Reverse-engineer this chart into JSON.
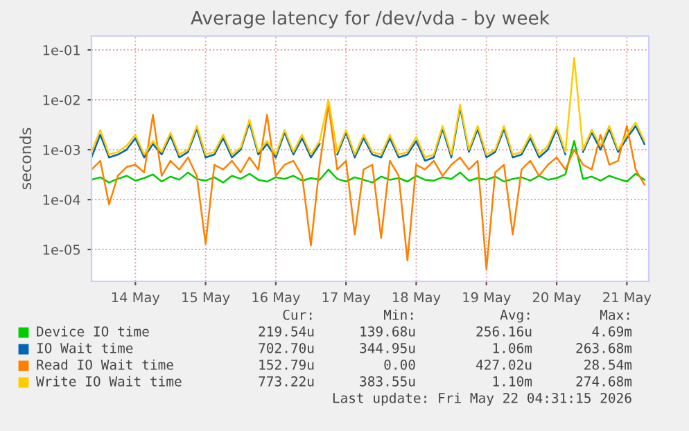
{
  "chart_data": {
    "type": "line",
    "title": "Average latency for /dev/vda - by week",
    "ylabel": "seconds",
    "x": [
      "2026-05-13T21:00",
      "2026-05-14T00:00",
      "2026-05-14T03:00",
      "2026-05-14T06:00",
      "2026-05-14T09:00",
      "2026-05-14T12:00",
      "2026-05-14T15:00",
      "2026-05-14T18:00",
      "2026-05-14T21:00",
      "2026-05-15T00:00",
      "2026-05-15T03:00",
      "2026-05-15T06:00",
      "2026-05-15T09:00",
      "2026-05-15T12:00",
      "2026-05-15T15:00",
      "2026-05-15T18:00",
      "2026-05-15T21:00",
      "2026-05-16T00:00",
      "2026-05-16T03:00",
      "2026-05-16T06:00",
      "2026-05-16T09:00",
      "2026-05-16T12:00",
      "2026-05-16T15:00",
      "2026-05-16T18:00",
      "2026-05-16T21:00",
      "2026-05-17T00:00",
      "2026-05-17T03:00",
      "2026-05-17T06:00",
      "2026-05-17T09:00",
      "2026-05-17T12:00",
      "2026-05-17T15:00",
      "2026-05-17T18:00",
      "2026-05-17T21:00",
      "2026-05-18T00:00",
      "2026-05-18T03:00",
      "2026-05-18T06:00",
      "2026-05-18T09:00",
      "2026-05-18T12:00",
      "2026-05-18T15:00",
      "2026-05-18T18:00",
      "2026-05-18T21:00",
      "2026-05-19T00:00",
      "2026-05-19T03:00",
      "2026-05-19T06:00",
      "2026-05-19T09:00",
      "2026-05-19T12:00",
      "2026-05-19T15:00",
      "2026-05-19T18:00",
      "2026-05-19T21:00",
      "2026-05-20T00:00",
      "2026-05-20T03:00",
      "2026-05-20T06:00",
      "2026-05-20T09:00",
      "2026-05-20T12:00",
      "2026-05-20T15:00",
      "2026-05-20T18:00",
      "2026-05-20T21:00",
      "2026-05-21T00:00",
      "2026-05-21T03:00",
      "2026-05-21T06:00",
      "2026-05-21T09:00",
      "2026-05-21T12:00",
      "2026-05-21T15:00",
      "2026-05-21T18:00"
    ],
    "series": [
      {
        "name": "Device IO time",
        "color": "#00cc00",
        "values": [
          0.00025,
          0.00028,
          0.00022,
          0.00026,
          0.0003,
          0.00024,
          0.00027,
          0.00032,
          0.00023,
          0.00029,
          0.00025,
          0.00035,
          0.00026,
          0.00024,
          0.00028,
          0.00022,
          0.0003,
          0.00026,
          0.00033,
          0.00025,
          0.00023,
          0.00028,
          0.00026,
          0.0003,
          0.00024,
          0.00027,
          0.00025,
          0.0004,
          0.00026,
          0.00023,
          0.00028,
          0.00025,
          0.00022,
          0.00029,
          0.00025,
          0.00027,
          0.00023,
          0.0003,
          0.00025,
          0.00024,
          0.00028,
          0.00026,
          0.00035,
          0.00024,
          0.00027,
          0.00025,
          0.00029,
          0.00023,
          0.00026,
          0.00028,
          0.00024,
          0.0003,
          0.00025,
          0.00027,
          0.00032,
          0.0015,
          0.00026,
          0.00029,
          0.00024,
          0.0003,
          0.00026,
          0.00023,
          0.00033,
          0.00025
        ]
      },
      {
        "name": "IO Wait time",
        "color": "#0066b3",
        "values": [
          0.0007,
          0.002,
          0.0007,
          0.0008,
          0.001,
          0.0017,
          0.0007,
          0.0013,
          0.0008,
          0.0019,
          0.0007,
          0.0009,
          0.0026,
          0.0007,
          0.0008,
          0.0017,
          0.0007,
          0.001,
          0.0035,
          0.0008,
          0.0013,
          0.0007,
          0.0022,
          0.0008,
          0.0017,
          0.0007,
          0.0013,
          null,
          0.0008,
          0.0022,
          0.0007,
          0.0017,
          0.0008,
          0.0007,
          0.0017,
          0.0007,
          0.0008,
          0.0015,
          0.0006,
          0.0007,
          0.0026,
          0.0007,
          0.007,
          0.0009,
          0.0026,
          0.0007,
          0.0009,
          0.0026,
          0.0007,
          0.0008,
          0.0017,
          0.0007,
          0.001,
          0.0026,
          0.0008,
          null,
          0.0009,
          0.0022,
          0.001,
          0.0026,
          0.0009,
          0.0017,
          0.003,
          0.0013
        ]
      },
      {
        "name": "Read IO Wait time",
        "color": "#ff8000",
        "values": [
          0.0004,
          0.0006,
          8e-05,
          0.0003,
          0.00045,
          0.0005,
          0.00035,
          0.005,
          0.0003,
          0.0006,
          0.0004,
          0.0007,
          0.0003,
          1.3e-05,
          0.0005,
          0.0004,
          0.0006,
          0.00035,
          0.0007,
          0.0004,
          0.005,
          0.0003,
          0.0005,
          0.0006,
          0.0003,
          1.2e-05,
          0.0005,
          0.008,
          0.0004,
          0.0006,
          2e-05,
          0.0004,
          0.0005,
          1.7e-05,
          0.0006,
          0.0003,
          6e-06,
          0.0005,
          0.0004,
          0.0006,
          0.0003,
          0.0005,
          0.0007,
          0.0004,
          0.0006,
          4e-06,
          0.00035,
          0.0005,
          2e-05,
          0.0004,
          0.0006,
          0.0003,
          0.0005,
          0.0007,
          0.0004,
          0.001,
          0.0005,
          0.0004,
          0.002,
          0.0005,
          0.0006,
          0.003,
          0.0004,
          0.0002
        ]
      },
      {
        "name": "Write IO Wait time",
        "color": "#ffcc00",
        "values": [
          0.0009,
          0.0025,
          0.0008,
          0.0009,
          0.0012,
          0.002,
          0.0008,
          0.0015,
          0.0009,
          0.0022,
          0.0008,
          0.001,
          0.003,
          0.0008,
          0.0009,
          0.002,
          0.0008,
          0.0011,
          0.004,
          0.0009,
          0.0015,
          0.0008,
          0.0025,
          0.0009,
          0.002,
          0.0008,
          0.0015,
          0.01,
          0.0009,
          0.0025,
          0.0008,
          0.002,
          0.0009,
          0.0008,
          0.002,
          0.0008,
          0.0009,
          0.0018,
          0.0007,
          0.0008,
          0.003,
          0.0008,
          0.008,
          0.001,
          0.003,
          0.0008,
          0.001,
          0.003,
          0.0008,
          0.0009,
          0.002,
          0.0008,
          0.0012,
          0.003,
          0.0009,
          0.07,
          0.001,
          0.0025,
          0.0012,
          0.003,
          0.001,
          0.002,
          0.0035,
          0.0015
        ]
      }
    ],
    "log": "y",
    "xlim": [
      "2026-05-13T21:00",
      "2026-05-21T19:30"
    ],
    "xticks": [
      {
        "value": "2026-05-14T12:00",
        "label": "14 May"
      },
      {
        "value": "2026-05-15T12:00",
        "label": "15 May"
      },
      {
        "value": "2026-05-16T12:00",
        "label": "16 May"
      },
      {
        "value": "2026-05-17T12:00",
        "label": "17 May"
      },
      {
        "value": "2026-05-18T12:00",
        "label": "18 May"
      },
      {
        "value": "2026-05-19T12:00",
        "label": "19 May"
      },
      {
        "value": "2026-05-20T12:00",
        "label": "20 May"
      },
      {
        "value": "2026-05-21T12:00",
        "label": "21 May"
      }
    ],
    "ylim": [
      2.3e-06,
      0.19
    ],
    "yticks": [
      {
        "value": 1e-05,
        "label": "1e-05"
      },
      {
        "value": 0.0001,
        "label": "1e-04"
      },
      {
        "value": 0.001,
        "label": "1e-03"
      },
      {
        "value": 0.01,
        "label": "1e-02"
      },
      {
        "value": 0.1,
        "label": "1e-01"
      }
    ],
    "grid": true,
    "legend": "bottom",
    "line_style": "solid",
    "marker": "none",
    "annotations": [
      "Cur:",
      "Min:",
      "Avg:",
      "Max:",
      "219.54u",
      "139.68u",
      "256.16u",
      "4.69m",
      "702.70u",
      "344.95u",
      "1.06m",
      "263.68m",
      "152.79u",
      "0.00",
      "427.02u",
      "28.54m",
      "773.22u",
      "383.55u",
      "1.10m",
      "274.68m",
      "Last update: Fri May 22 04:31:15 2026"
    ]
  }
}
